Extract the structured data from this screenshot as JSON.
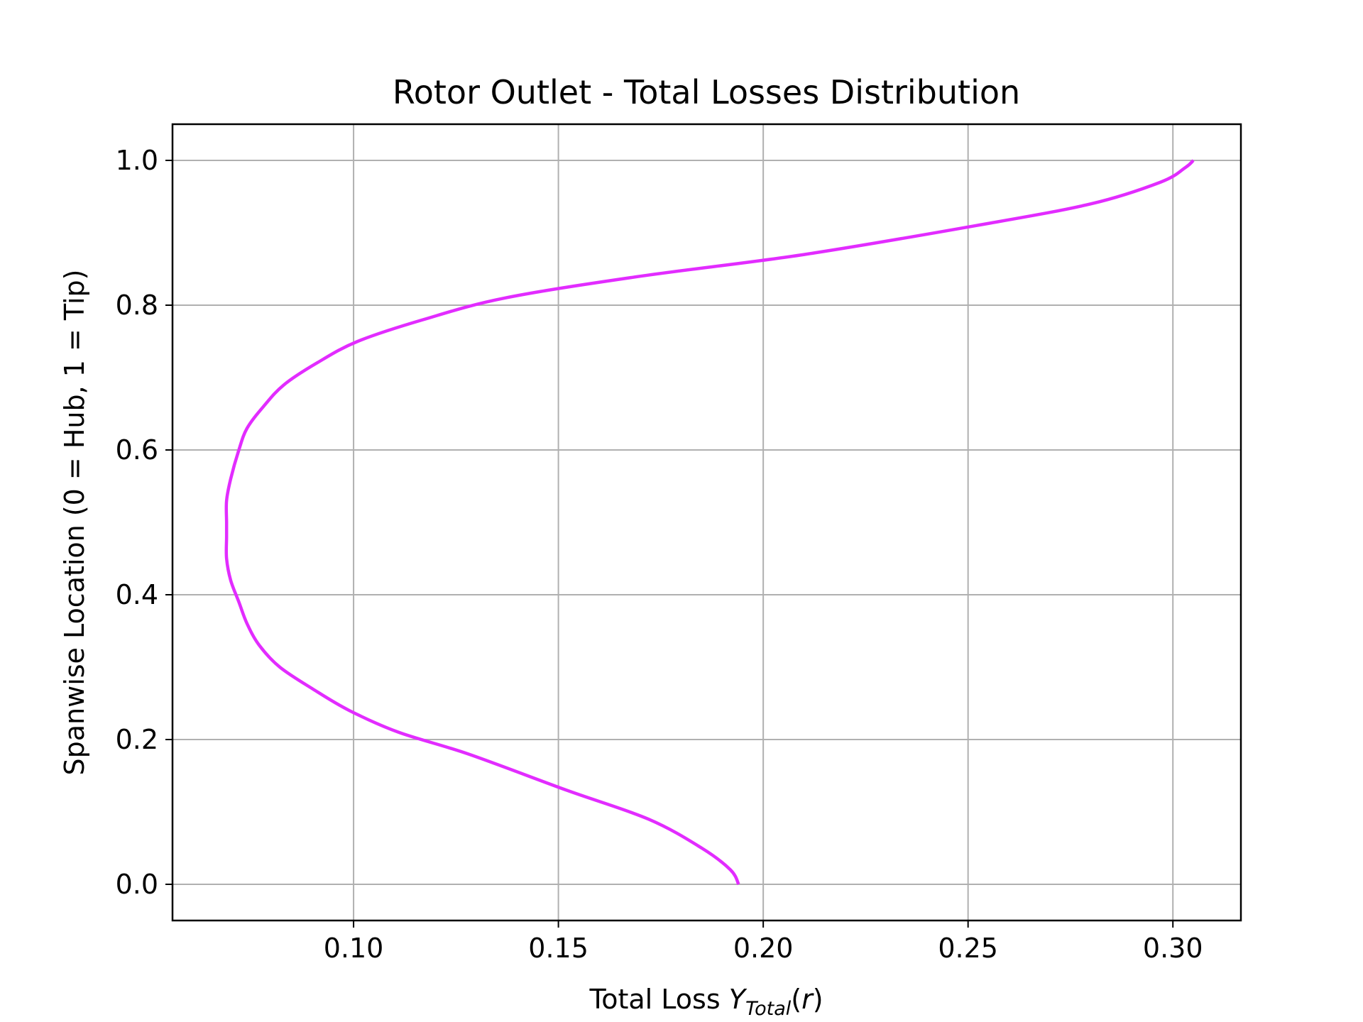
{
  "chart_data": {
    "type": "line",
    "title": "Rotor Outlet - Total Losses Distribution",
    "xlabel": {
      "prefix": "Total Loss ",
      "symbol": "Y",
      "subscript": "Total",
      "suffix_open": "(",
      "arg": "r",
      "suffix_close": ")"
    },
    "ylabel": "Spanwise Location (0 = Hub, 1 = Tip)",
    "xlim": [
      0.0558,
      0.3166
    ],
    "ylim": [
      -0.05,
      1.05
    ],
    "xticks": [
      0.1,
      0.15,
      0.2,
      0.25,
      0.3
    ],
    "xtick_labels": [
      "0.10",
      "0.15",
      "0.20",
      "0.25",
      "0.30"
    ],
    "yticks": [
      0.0,
      0.2,
      0.4,
      0.6,
      0.8,
      1.0
    ],
    "ytick_labels": [
      "0.0",
      "0.2",
      "0.4",
      "0.6",
      "0.8",
      "1.0"
    ],
    "grid": true,
    "series": [
      {
        "color": "#e22cff",
        "x": [
          0.194,
          0.192,
          0.185,
          0.172,
          0.152,
          0.128,
          0.111,
          0.099,
          0.09,
          0.082,
          0.077,
          0.074,
          0.072,
          0.07,
          0.069,
          0.069,
          0.069,
          0.069,
          0.07,
          0.072,
          0.074,
          0.078,
          0.083,
          0.091,
          0.101,
          0.117,
          0.137,
          0.17,
          0.21,
          0.252,
          0.28,
          0.297,
          0.303,
          0.305
        ],
        "y": [
          0.0,
          0.02,
          0.05,
          0.09,
          0.13,
          0.18,
          0.21,
          0.24,
          0.27,
          0.3,
          0.33,
          0.36,
          0.39,
          0.42,
          0.45,
          0.48,
          0.5,
          0.53,
          0.56,
          0.6,
          0.63,
          0.66,
          0.69,
          0.72,
          0.75,
          0.78,
          0.81,
          0.84,
          0.87,
          0.91,
          0.94,
          0.97,
          0.99,
          1.0
        ]
      }
    ]
  }
}
